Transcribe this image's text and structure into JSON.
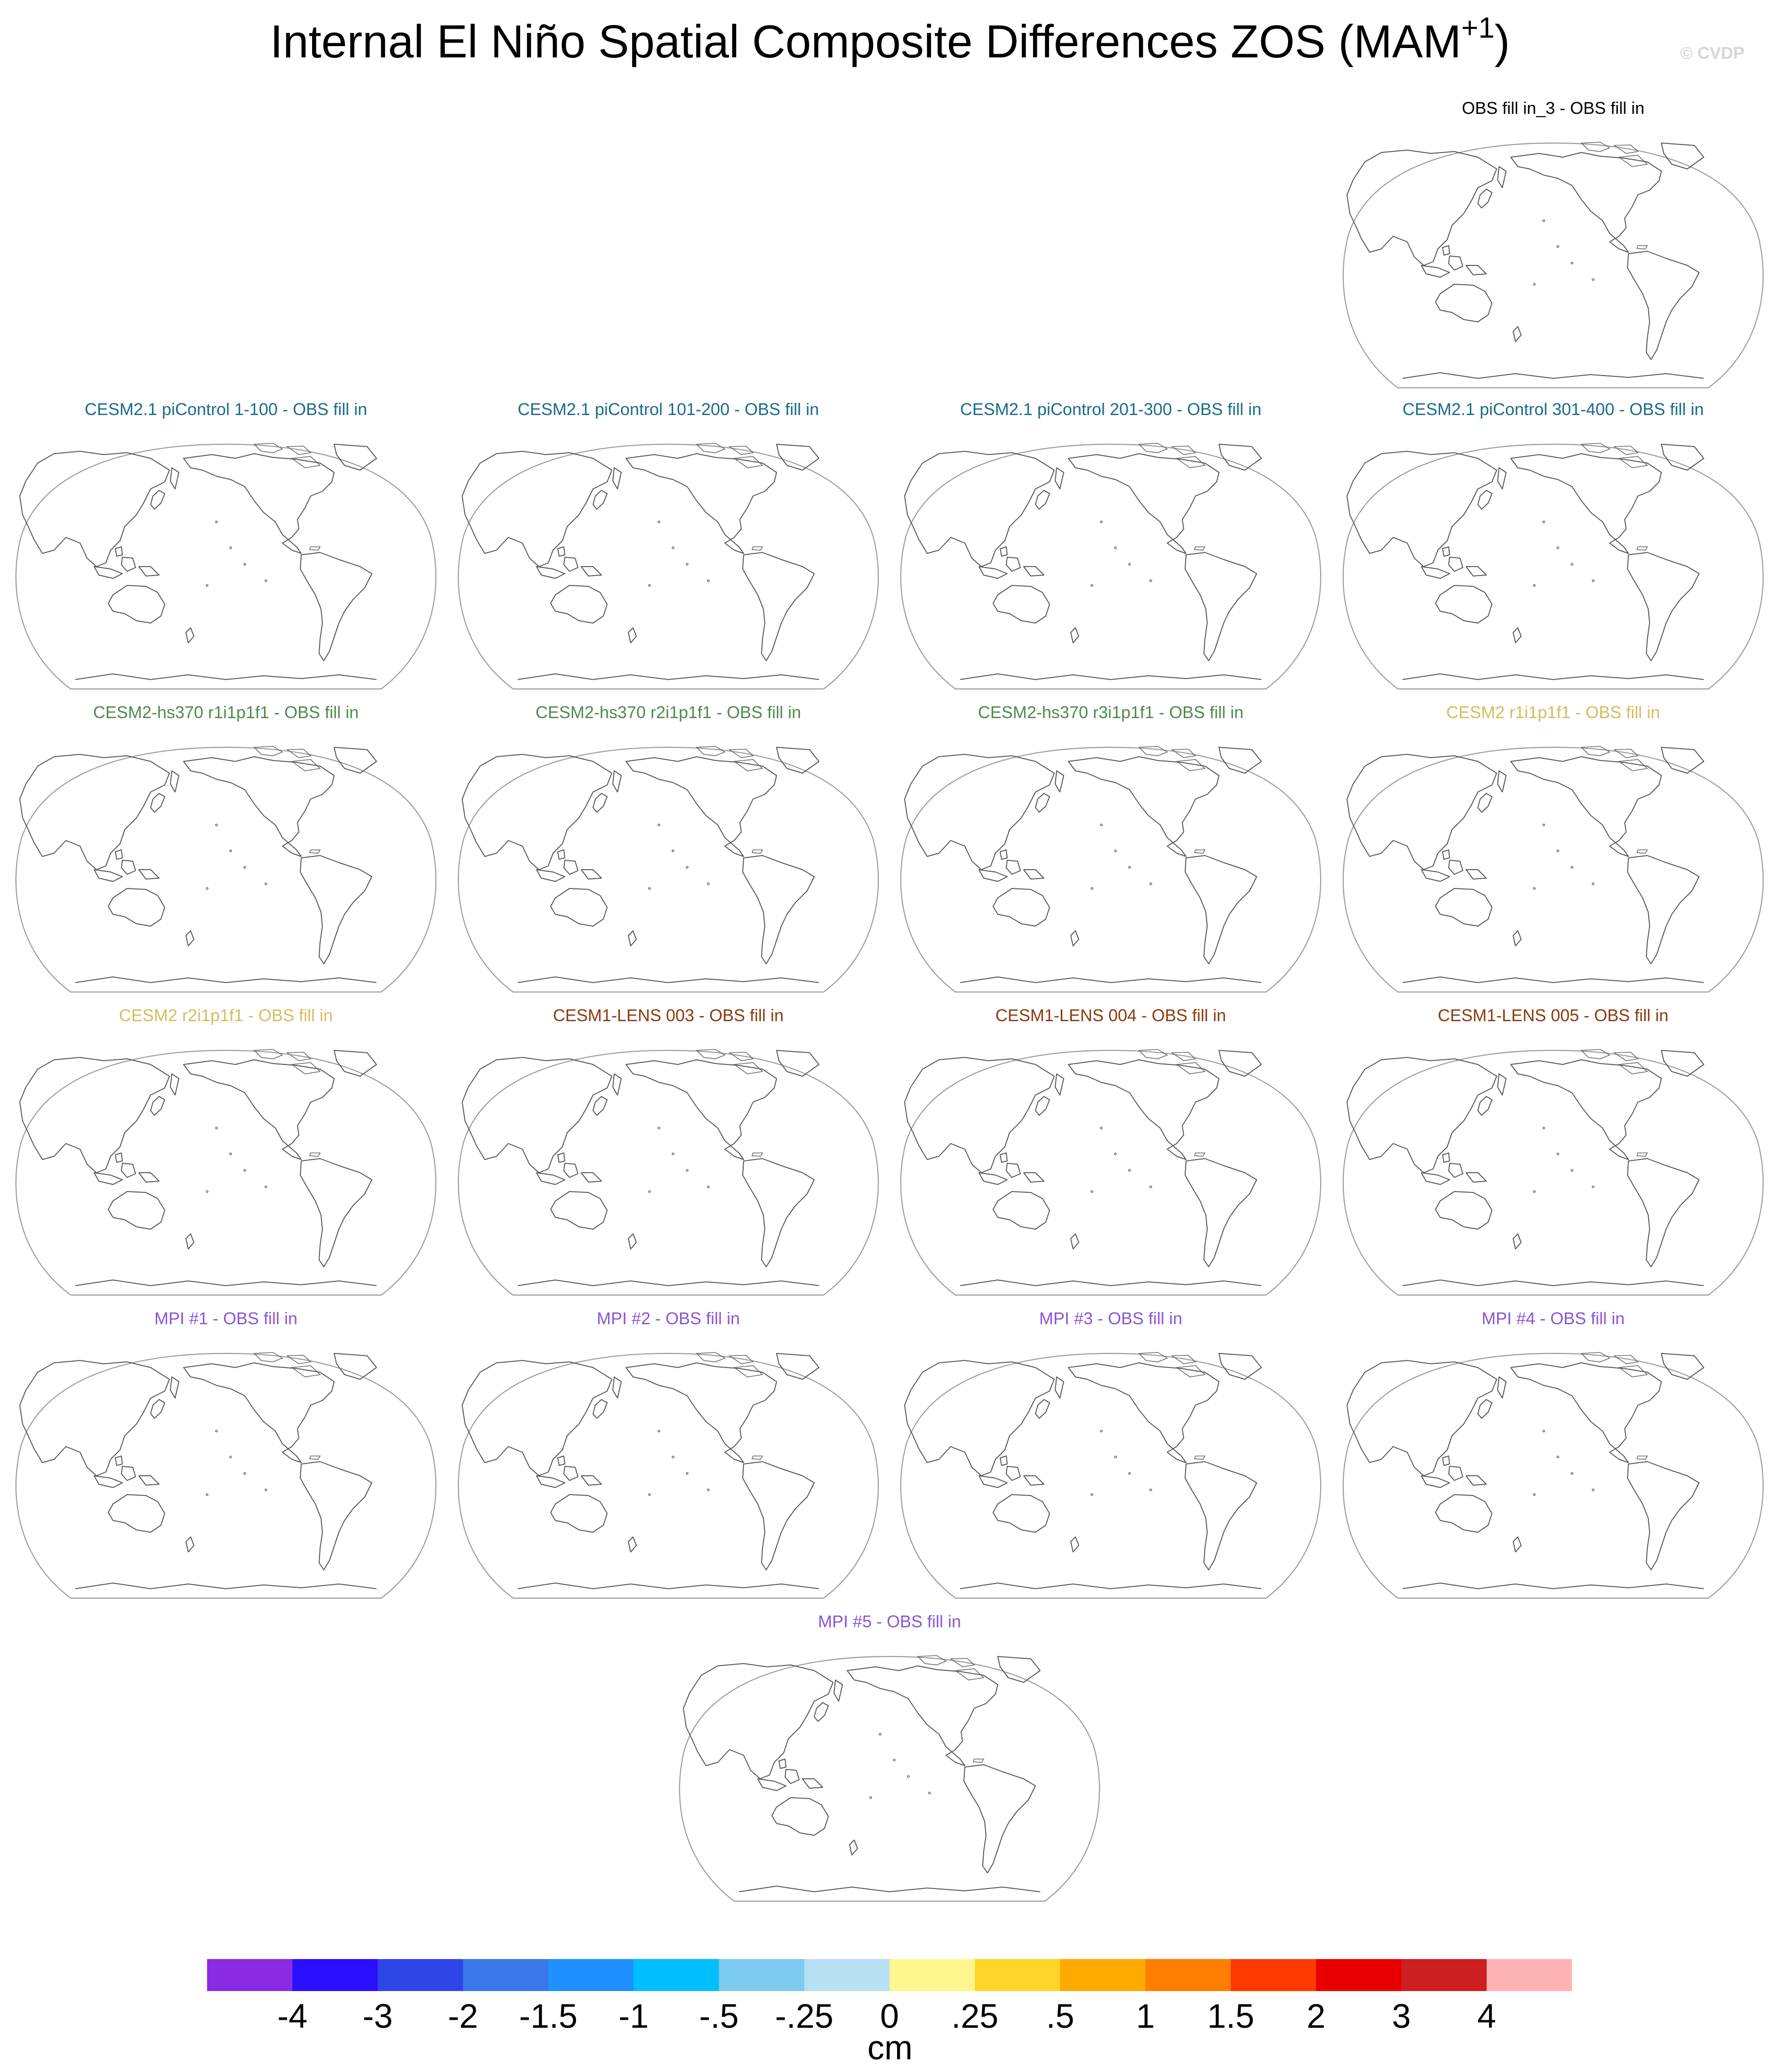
{
  "title": {
    "text": "Internal El Niño Spatial Composite Differences ZOS (MAM",
    "superscript": "+1",
    "close": ")"
  },
  "watermark": "© CVDP",
  "panels": [
    {
      "title": "OBS fill in_3 - OBS fill in",
      "color": "#000000"
    },
    {
      "title": "CESM2.1 piControl 1-100 - OBS fill in",
      "color": "#1a6b8a"
    },
    {
      "title": "CESM2.1 piControl 101-200 - OBS fill in",
      "color": "#1a6b8a"
    },
    {
      "title": "CESM2.1 piControl 201-300 - OBS fill in",
      "color": "#1a6b8a"
    },
    {
      "title": "CESM2.1 piControl 301-400 - OBS fill in",
      "color": "#1a6b8a"
    },
    {
      "title": "CESM2-hs370 r1i1p1f1 - OBS fill in",
      "color": "#4e8a4e"
    },
    {
      "title": "CESM2-hs370 r2i1p1f1 - OBS fill in",
      "color": "#4e8a4e"
    },
    {
      "title": "CESM2-hs370 r3i1p1f1 - OBS fill in",
      "color": "#4e8a4e"
    },
    {
      "title": "CESM2 r1i1p1f1 - OBS fill in",
      "color": "#d4bd5f"
    },
    {
      "title": "CESM2 r2i1p1f1 - OBS fill in",
      "color": "#d4bd5f"
    },
    {
      "title": "CESM1-LENS 003 - OBS fill in",
      "color": "#8b3a0e"
    },
    {
      "title": "CESM1-LENS 004 - OBS fill in",
      "color": "#8b3a0e"
    },
    {
      "title": "CESM1-LENS 005 - OBS fill in",
      "color": "#8b3a0e"
    },
    {
      "title": "MPI #1 - OBS fill in",
      "color": "#8a55d6"
    },
    {
      "title": "MPI #2 - OBS fill in",
      "color": "#8a55d6"
    },
    {
      "title": "MPI #3 - OBS fill in",
      "color": "#8a55d6"
    },
    {
      "title": "MPI #4 - OBS fill in",
      "color": "#8a55d6"
    },
    {
      "title": "MPI #5 - OBS fill in",
      "color": "#8a55d6"
    }
  ],
  "colorbar": {
    "units": "cm",
    "labels": [
      "-4",
      "-3",
      "-2",
      "-1.5",
      "-1",
      "-.5",
      "-.25",
      "0",
      ".25",
      ".5",
      "1",
      "1.5",
      "2",
      "3",
      "4"
    ],
    "colors": [
      "#8a2be2",
      "#2a0fff",
      "#2e46e8",
      "#3a78ea",
      "#1e90ff",
      "#00bfff",
      "#7ecbf0",
      "#b6e0f3",
      "#fff68f",
      "#ffd428",
      "#ffaa00",
      "#ff7d00",
      "#ff3a00",
      "#e80000",
      "#cd1f1f",
      "#ffb4b4"
    ]
  }
}
